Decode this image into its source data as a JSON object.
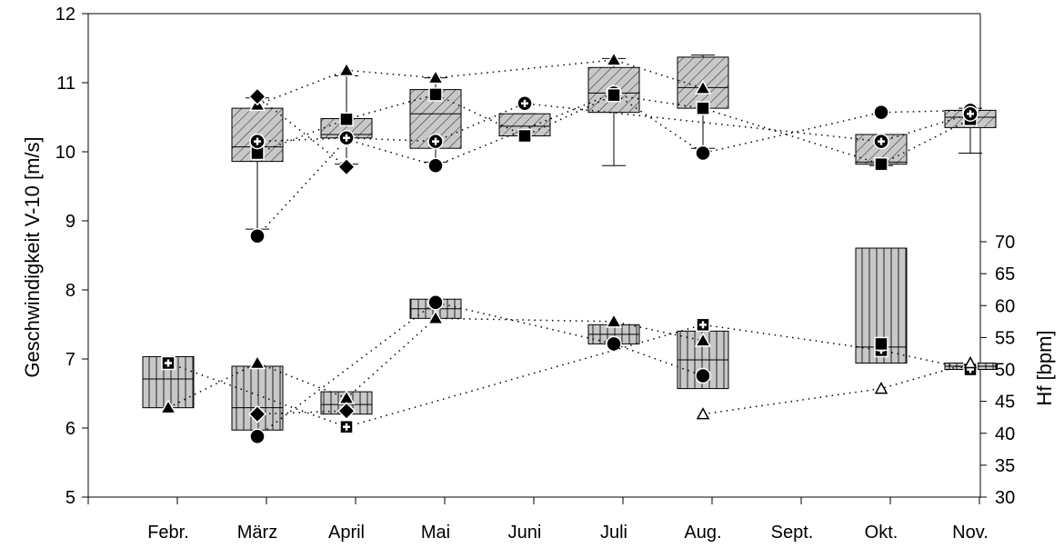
{
  "chart_data": {
    "type": "box",
    "categories": [
      "Febr.",
      "März",
      "April",
      "Mai",
      "Juni",
      "Juli",
      "Aug.",
      "Sept.",
      "Okt.",
      "Nov."
    ],
    "ylabel_left": "Geschwindigkeit V-10 [m/s]",
    "ylabel_right": "Hf [bpm]",
    "ylim_left": [
      5,
      12
    ],
    "yticks_left": [
      5,
      6,
      7,
      8,
      9,
      10,
      11,
      12
    ],
    "ylim_right": [
      30,
      70
    ],
    "yticks_right": [
      30,
      35,
      40,
      45,
      50,
      55,
      60,
      65,
      70
    ],
    "speed_boxes": [
      {
        "category": "März",
        "min": 8.88,
        "q1": 9.86,
        "median": 10.07,
        "q3": 10.63,
        "max": 10.78
      },
      {
        "category": "April",
        "min": 9.82,
        "q1": 10.2,
        "median": 10.25,
        "q3": 10.48,
        "max": 11.1
      },
      {
        "category": "Mai",
        "min": 9.85,
        "q1": 10.05,
        "median": 10.55,
        "q3": 10.9,
        "max": 11.07
      },
      {
        "category": "Juni",
        "min": 10.23,
        "q1": 10.23,
        "median": 10.37,
        "q3": 10.55,
        "max": 10.55
      },
      {
        "category": "Juli",
        "min": 9.8,
        "q1": 10.57,
        "median": 10.85,
        "q3": 11.22,
        "max": 11.35
      },
      {
        "category": "Aug.",
        "min": 10.05,
        "q1": 10.63,
        "median": 10.93,
        "q3": 11.37,
        "max": 11.4
      },
      {
        "category": "Okt.",
        "min": 9.8,
        "q1": 9.82,
        "median": 9.85,
        "q3": 10.25,
        "max": 10.25
      },
      {
        "category": "Nov.",
        "min": 9.98,
        "q1": 10.35,
        "median": 10.5,
        "q3": 10.6,
        "max": 10.63
      }
    ],
    "hf_boxes": [
      {
        "category": "Febr.",
        "q1": 44.0,
        "median": 48.5,
        "q3": 52.0
      },
      {
        "category": "März",
        "q1": 40.5,
        "median": 44.0,
        "q3": 50.5
      },
      {
        "category": "April",
        "q1": 43.0,
        "median": 44.5,
        "q3": 46.5
      },
      {
        "category": "Mai",
        "q1": 58.0,
        "median": 59.5,
        "q3": 61.0
      },
      {
        "category": "Juli",
        "q1": 54.0,
        "median": 55.5,
        "q3": 57.0
      },
      {
        "category": "Aug.",
        "q1": 47.0,
        "median": 51.5,
        "q3": 56.0
      },
      {
        "category": "Okt.",
        "q1": 51.0,
        "median": 53.5,
        "q3": 69.0
      },
      {
        "category": "Nov.",
        "q1": 50.0,
        "median": 50.5,
        "q3": 51.0
      }
    ],
    "speed_series": [
      {
        "marker": "circle",
        "points": [
          [
            "März",
            8.78
          ],
          [
            "April",
            10.18
          ],
          [
            "Mai",
            9.8
          ],
          [
            "Juli",
            10.85
          ],
          [
            "Aug.",
            9.98
          ],
          [
            "Okt.",
            10.57
          ],
          [
            "Nov.",
            10.6
          ]
        ]
      },
      {
        "marker": "triangle",
        "points": [
          [
            "März",
            10.68
          ],
          [
            "April",
            11.18
          ],
          [
            "Mai",
            11.07
          ],
          [
            "Juli",
            11.33
          ],
          [
            "Aug.",
            10.92
          ]
        ]
      },
      {
        "marker": "square",
        "points": [
          [
            "März",
            9.98
          ],
          [
            "April",
            10.47
          ],
          [
            "Mai",
            10.83
          ],
          [
            "Juni",
            10.23
          ],
          [
            "Juli",
            10.82
          ],
          [
            "Aug.",
            10.63
          ],
          [
            "Okt.",
            9.82
          ],
          [
            "Nov.",
            10.47
          ]
        ]
      },
      {
        "marker": "diamond",
        "points": [
          [
            "März",
            10.8
          ],
          [
            "April",
            9.78
          ]
        ]
      },
      {
        "marker": "plus-circle",
        "points": [
          [
            "März",
            10.15
          ],
          [
            "April",
            10.2
          ],
          [
            "Mai",
            10.15
          ],
          [
            "Juni",
            10.7
          ],
          [
            "Okt.",
            10.15
          ],
          [
            "Nov.",
            10.55
          ]
        ]
      }
    ],
    "hf_series": [
      {
        "marker": "circle",
        "points": [
          [
            "März",
            39.5
          ],
          [
            "Mai",
            60.5
          ],
          [
            "Juli",
            54.0
          ],
          [
            "Aug.",
            49.0
          ]
        ]
      },
      {
        "marker": "triangle",
        "points": [
          [
            "Febr.",
            44.0
          ],
          [
            "März",
            51.0
          ],
          [
            "April",
            45.5
          ],
          [
            "Mai",
            58.0
          ],
          [
            "Juli",
            57.5
          ],
          [
            "Aug.",
            54.5
          ]
        ]
      },
      {
        "marker": "diamond",
        "points": [
          [
            "März",
            43.0
          ],
          [
            "April",
            43.5
          ]
        ]
      },
      {
        "marker": "plus-square",
        "points": [
          [
            "Febr.",
            51.0
          ],
          [
            "April",
            41.0
          ],
          [
            "Aug.",
            57.0
          ],
          [
            "Okt.",
            53.0
          ],
          [
            "Nov.",
            50.0
          ]
        ]
      },
      {
        "marker": "square",
        "points": [
          [
            "Okt.",
            54.0
          ]
        ]
      },
      {
        "marker": "triangle-open",
        "points": [
          [
            "Aug.",
            43.0
          ],
          [
            "Okt.",
            47.0
          ],
          [
            "Nov.",
            51.0
          ]
        ]
      }
    ]
  }
}
